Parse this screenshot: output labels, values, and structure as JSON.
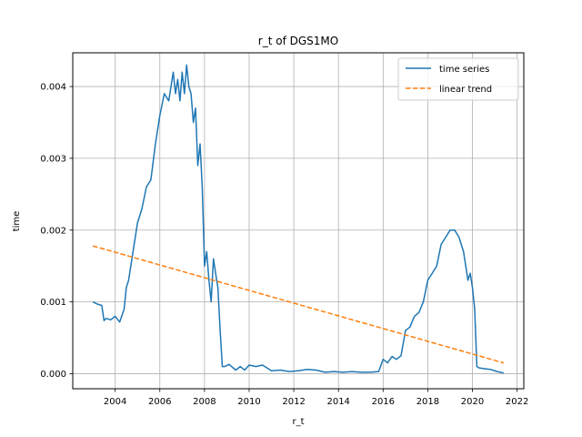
{
  "chart_data": {
    "type": "line",
    "title": "r_t of DGS1MO",
    "xlabel": "r_t",
    "ylabel": "time",
    "xlim": [
      2002.1,
      2022.3
    ],
    "ylim": [
      -0.00021,
      0.00447
    ],
    "xticks": [
      2004,
      2006,
      2008,
      2010,
      2012,
      2014,
      2016,
      2018,
      2020,
      2022
    ],
    "xtick_labels": [
      "2004",
      "2006",
      "2008",
      "2010",
      "2012",
      "2014",
      "2016",
      "2018",
      "2020",
      "2022"
    ],
    "yticks": [
      0.0,
      0.001,
      0.002,
      0.003,
      0.004
    ],
    "ytick_labels": [
      "0.000",
      "0.001",
      "0.002",
      "0.003",
      "0.004"
    ],
    "grid": true,
    "legend_position": "top-right",
    "series": [
      {
        "name": "time series",
        "color": "#1f77b4",
        "style": "solid",
        "x": [
          2003.0,
          2003.2,
          2003.4,
          2003.5,
          2003.6,
          2003.8,
          2004.0,
          2004.2,
          2004.4,
          2004.5,
          2004.6,
          2004.8,
          2005.0,
          2005.2,
          2005.4,
          2005.6,
          2005.8,
          2006.0,
          2006.2,
          2006.4,
          2006.6,
          2006.7,
          2006.8,
          2006.9,
          2007.0,
          2007.1,
          2007.2,
          2007.3,
          2007.4,
          2007.5,
          2007.6,
          2007.7,
          2007.8,
          2007.9,
          2008.0,
          2008.1,
          2008.2,
          2008.3,
          2008.4,
          2008.5,
          2008.6,
          2008.7,
          2008.8,
          2008.9,
          2009.1,
          2009.4,
          2009.6,
          2009.8,
          2010.0,
          2010.3,
          2010.6,
          2011.0,
          2011.4,
          2011.8,
          2012.2,
          2012.6,
          2013.0,
          2013.4,
          2013.8,
          2014.2,
          2014.6,
          2015.0,
          2015.4,
          2015.8,
          2016.0,
          2016.2,
          2016.4,
          2016.6,
          2016.8,
          2017.0,
          2017.2,
          2017.4,
          2017.6,
          2017.8,
          2018.0,
          2018.2,
          2018.4,
          2018.6,
          2018.8,
          2019.0,
          2019.2,
          2019.4,
          2019.6,
          2019.8,
          2019.9,
          2020.0,
          2020.1,
          2020.2,
          2020.3,
          2020.5,
          2020.8,
          2021.1,
          2021.4
        ],
        "values": [
          0.001,
          0.00097,
          0.00095,
          0.00074,
          0.00077,
          0.00075,
          0.0008,
          0.00072,
          0.0009,
          0.0012,
          0.0013,
          0.0017,
          0.0021,
          0.0023,
          0.0026,
          0.0027,
          0.0032,
          0.0036,
          0.0039,
          0.0038,
          0.0042,
          0.0039,
          0.0041,
          0.0038,
          0.0042,
          0.0039,
          0.0043,
          0.004,
          0.0039,
          0.0035,
          0.0037,
          0.0029,
          0.0032,
          0.0026,
          0.0015,
          0.0017,
          0.0013,
          0.001,
          0.0016,
          0.0014,
          0.0012,
          0.0006,
          0.0001,
          0.0001,
          0.00013,
          5e-05,
          0.0001,
          5e-05,
          0.00012,
          0.0001,
          0.00012,
          4e-05,
          5e-05,
          3e-05,
          4e-05,
          6e-05,
          5e-05,
          2e-05,
          3e-05,
          2e-05,
          3e-05,
          2e-05,
          2e-05,
          3e-05,
          0.0002,
          0.00015,
          0.00024,
          0.0002,
          0.00025,
          0.0006,
          0.00065,
          0.0008,
          0.00085,
          0.001,
          0.0013,
          0.0014,
          0.0015,
          0.0018,
          0.0019,
          0.002,
          0.002,
          0.0019,
          0.0017,
          0.0013,
          0.0014,
          0.0012,
          0.0009,
          0.0001,
          8e-05,
          7e-05,
          6e-05,
          3e-05,
          1e-05
        ]
      },
      {
        "name": "linear trend",
        "color": "#ff7f0e",
        "style": "dashed",
        "x": [
          2003.0,
          2021.4
        ],
        "values": [
          0.00178,
          0.00015
        ]
      }
    ]
  }
}
